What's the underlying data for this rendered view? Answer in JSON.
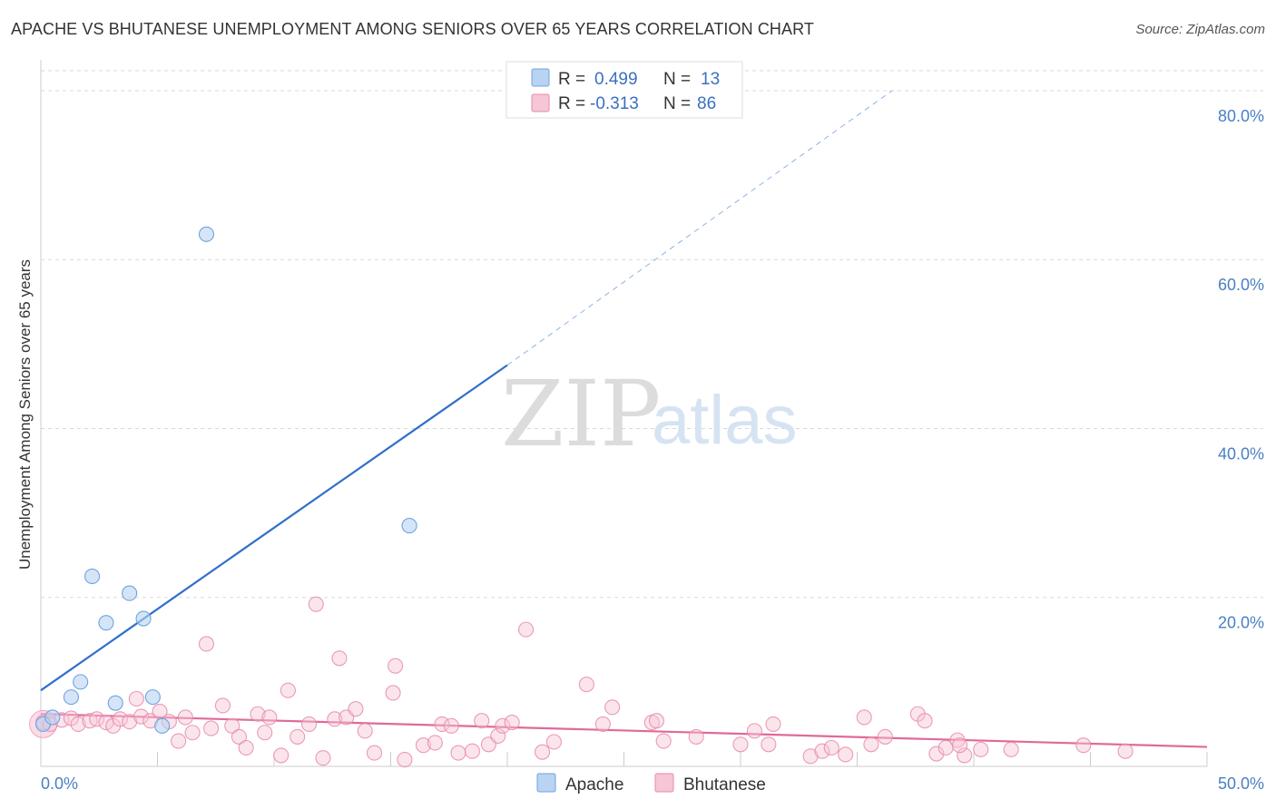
{
  "header": {
    "title": "APACHE VS BHUTANESE UNEMPLOYMENT AMONG SENIORS OVER 65 YEARS CORRELATION CHART",
    "source": "Source: ZipAtlas.com"
  },
  "watermark": {
    "zip": "ZIP",
    "atlas": "atlas"
  },
  "legend": {
    "rows": [
      {
        "r_label": "R =",
        "r_value": "0.499",
        "n_label": "N =",
        "n_value": "13"
      },
      {
        "r_label": "R =",
        "r_value": "-0.313",
        "n_label": "N =",
        "n_value": "86"
      }
    ]
  },
  "colors": {
    "apache": "#6fa3e0",
    "apache_fill": "#b9d3f2",
    "bhutanese": "#e889a9",
    "bhutanese_fill": "#f6c6d6",
    "apache_line": "#2f6fca",
    "bhutanese_line": "#e0699a",
    "grid": "#d9d9d9"
  },
  "chart_data": {
    "type": "scatter",
    "title": "APACHE VS BHUTANESE UNEMPLOYMENT AMONG SENIORS OVER 65 YEARS CORRELATION CHART",
    "xlabel": "",
    "ylabel": "Unemployment Among Seniors over 65 years",
    "xlim": [
      0,
      50
    ],
    "ylim": [
      0,
      83
    ],
    "x_tick_labels": [
      "0.0%",
      "50.0%"
    ],
    "y_ticks": [
      20,
      40,
      60,
      80
    ],
    "y_tick_labels": [
      "20.0%",
      "40.0%",
      "60.0%",
      "80.0%"
    ],
    "legend_position": "bottom-center",
    "series": [
      {
        "name": "Apache",
        "r": 0.499,
        "n": 13,
        "trend": {
          "x0": 0,
          "y0": 9.0,
          "x1": 20,
          "y1": 47.5,
          "dashed_to_x": 36.5,
          "dashed_to_y": 80.0
        },
        "points": [
          [
            0.1,
            5.0
          ],
          [
            0.5,
            5.8
          ],
          [
            1.3,
            8.2
          ],
          [
            1.7,
            10.0
          ],
          [
            2.2,
            22.5
          ],
          [
            2.8,
            17.0
          ],
          [
            3.2,
            7.5
          ],
          [
            3.8,
            20.5
          ],
          [
            4.4,
            17.5
          ],
          [
            4.8,
            8.2
          ],
          [
            5.2,
            4.8
          ],
          [
            7.1,
            63.0
          ],
          [
            15.8,
            28.5
          ]
        ]
      },
      {
        "name": "Bhutanese",
        "r": -0.313,
        "n": 86,
        "trend": {
          "x0": 0,
          "y0": 6.2,
          "x1": 50,
          "y1": 2.3
        },
        "points": [
          [
            0.1,
            5.2
          ],
          [
            0.4,
            5.0
          ],
          [
            0.9,
            5.5
          ],
          [
            1.3,
            5.7
          ],
          [
            1.6,
            5.0
          ],
          [
            2.1,
            5.4
          ],
          [
            2.4,
            5.6
          ],
          [
            2.8,
            5.2
          ],
          [
            3.1,
            4.8
          ],
          [
            3.4,
            5.6
          ],
          [
            3.8,
            5.3
          ],
          [
            4.1,
            8.0
          ],
          [
            4.3,
            5.9
          ],
          [
            4.7,
            5.4
          ],
          [
            5.1,
            6.5
          ],
          [
            5.5,
            5.3
          ],
          [
            5.9,
            3.0
          ],
          [
            6.2,
            5.8
          ],
          [
            6.5,
            4.0
          ],
          [
            7.3,
            4.5
          ],
          [
            7.1,
            14.5
          ],
          [
            7.8,
            7.2
          ],
          [
            8.2,
            4.8
          ],
          [
            8.5,
            3.5
          ],
          [
            8.8,
            2.2
          ],
          [
            9.3,
            6.2
          ],
          [
            9.6,
            4.0
          ],
          [
            9.8,
            5.8
          ],
          [
            10.3,
            1.3
          ],
          [
            10.6,
            9.0
          ],
          [
            11.0,
            3.5
          ],
          [
            11.5,
            5.0
          ],
          [
            11.8,
            19.2
          ],
          [
            12.1,
            1.0
          ],
          [
            12.6,
            5.6
          ],
          [
            12.8,
            12.8
          ],
          [
            13.1,
            5.8
          ],
          [
            13.5,
            6.8
          ],
          [
            13.9,
            4.2
          ],
          [
            14.3,
            1.6
          ],
          [
            15.1,
            8.7
          ],
          [
            15.2,
            11.9
          ],
          [
            15.6,
            0.8
          ],
          [
            16.4,
            2.5
          ],
          [
            16.9,
            2.8
          ],
          [
            17.2,
            5.0
          ],
          [
            17.6,
            4.8
          ],
          [
            17.9,
            1.6
          ],
          [
            18.5,
            1.8
          ],
          [
            18.9,
            5.4
          ],
          [
            19.2,
            2.6
          ],
          [
            19.6,
            3.6
          ],
          [
            19.8,
            4.8
          ],
          [
            20.2,
            5.2
          ],
          [
            20.8,
            16.2
          ],
          [
            21.5,
            1.7
          ],
          [
            22.0,
            2.9
          ],
          [
            23.4,
            9.7
          ],
          [
            24.1,
            5.0
          ],
          [
            24.5,
            7.0
          ],
          [
            26.2,
            5.2
          ],
          [
            26.4,
            5.4
          ],
          [
            26.7,
            3.0
          ],
          [
            28.1,
            3.5
          ],
          [
            30.0,
            2.6
          ],
          [
            30.6,
            4.2
          ],
          [
            31.2,
            2.6
          ],
          [
            31.4,
            5.0
          ],
          [
            33.0,
            1.2
          ],
          [
            33.5,
            1.8
          ],
          [
            33.9,
            2.2
          ],
          [
            34.5,
            1.4
          ],
          [
            35.3,
            5.8
          ],
          [
            35.6,
            2.6
          ],
          [
            36.2,
            3.5
          ],
          [
            37.6,
            6.2
          ],
          [
            37.9,
            5.4
          ],
          [
            38.4,
            1.5
          ],
          [
            38.8,
            2.2
          ],
          [
            39.3,
            3.1
          ],
          [
            39.6,
            1.3
          ],
          [
            39.4,
            2.5
          ],
          [
            40.3,
            2.0
          ],
          [
            41.6,
            2.0
          ],
          [
            44.7,
            2.5
          ],
          [
            46.5,
            1.8
          ]
        ]
      }
    ]
  }
}
